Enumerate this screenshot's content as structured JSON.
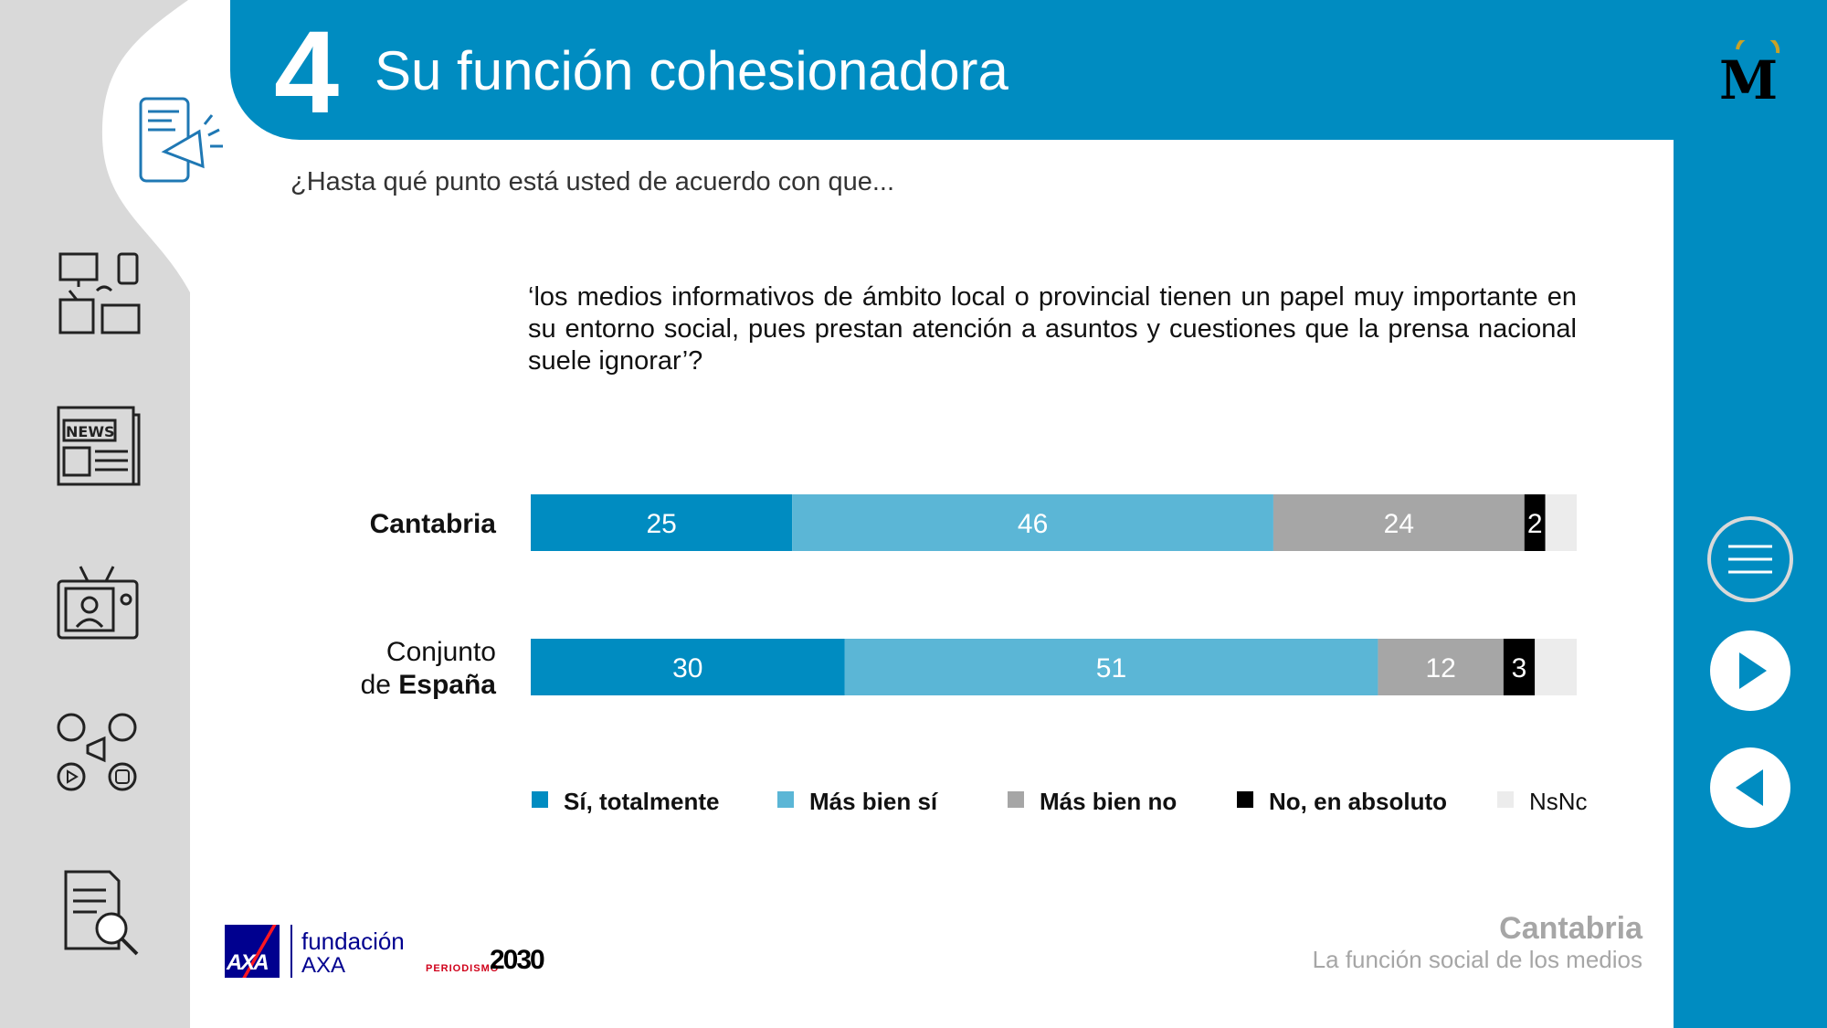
{
  "header": {
    "section_number": "4",
    "title": "Su función cohesionadora"
  },
  "question": "¿Hasta qué punto está usted de acuerdo con que...",
  "statement": "‘los medios informativos de ámbito local o provincial tienen un papel muy importante en su entorno social, pues prestan atención a asuntos y cuestiones que la prensa nacional suele ignorar’?",
  "chart_data": {
    "type": "bar",
    "orientation": "horizontal",
    "stacked": true,
    "categories": [
      {
        "line1": "",
        "line1_bold": "Cantabria",
        "line2": "",
        "line2_bold": ""
      },
      {
        "line1": "Conjunto",
        "line1_bold": "",
        "line2": "de ",
        "line2_bold": "España"
      }
    ],
    "series": [
      {
        "name": "Sí, totalmente",
        "color": "#008cc1",
        "values": [
          25,
          30
        ],
        "labels": [
          "25",
          "30"
        ]
      },
      {
        "name": "Más bien sí",
        "color": "#5bb6d6",
        "values": [
          46,
          51
        ],
        "labels": [
          "46",
          "51"
        ]
      },
      {
        "name": "Más bien no",
        "color": "#a6a6a6",
        "values": [
          24,
          12
        ],
        "labels": [
          "24",
          "12"
        ]
      },
      {
        "name": "No, en absoluto",
        "color": "#000000",
        "values": [
          2,
          3
        ],
        "labels": [
          "2",
          "3"
        ]
      },
      {
        "name": "NsNc",
        "color": "#ececec",
        "values": [
          3,
          4
        ],
        "labels": [
          "",
          ""
        ]
      }
    ],
    "xlim": [
      0,
      100
    ],
    "legend_position": "bottom",
    "grid": false
  },
  "sidebar": {
    "icons": [
      "phone-megaphone-icon",
      "devices-icon",
      "newspaper-icon",
      "tv-presenter-icon",
      "social-media-icon",
      "document-search-icon"
    ],
    "news_label": "NEWS"
  },
  "nav": {
    "menu": "menu-icon",
    "next": "next-icon",
    "prev": "prev-icon"
  },
  "footer": {
    "region": "Cantabria",
    "subtitle": "La función social de los medios",
    "axa": "AXA",
    "fundacion_line1": "fundación",
    "fundacion_line2": "AXA",
    "periodismo": "PERIODISMO",
    "periodismo_year": "2030"
  },
  "colors": {
    "brand_blue": "#008cc1",
    "light_blue": "#5bb6d6",
    "grey": "#a6a6a6",
    "rail_grey": "#d9d9d9"
  }
}
